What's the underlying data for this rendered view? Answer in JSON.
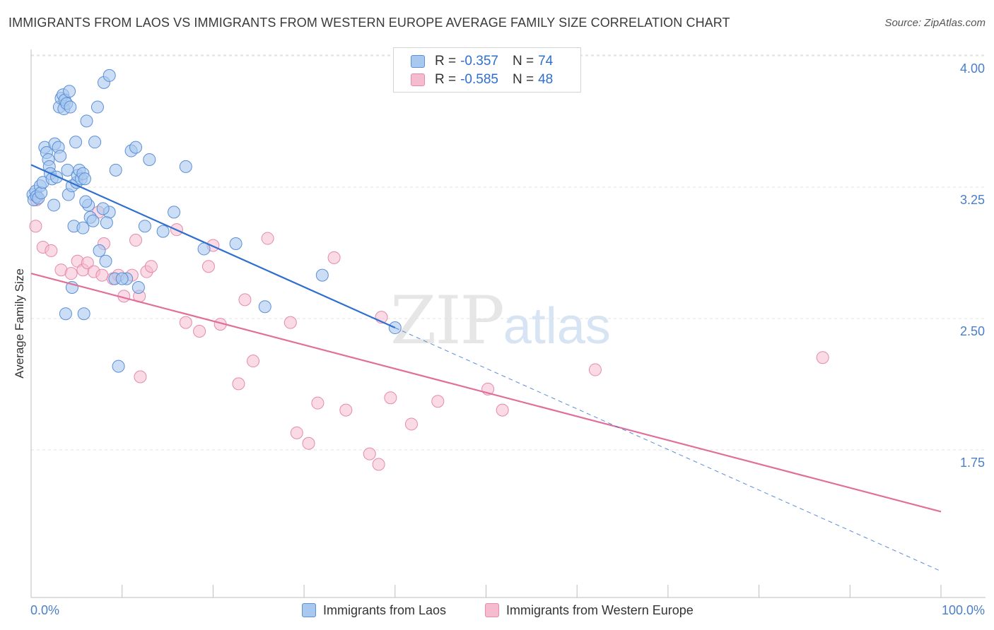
{
  "title": "IMMIGRANTS FROM LAOS VS IMMIGRANTS FROM WESTERN EUROPE AVERAGE FAMILY SIZE CORRELATION CHART",
  "source": "Source: ZipAtlas.com",
  "watermark": {
    "zip": "ZIP",
    "atlas": "atlas"
  },
  "legend": {
    "r_label": "R =",
    "n_label": "N =",
    "rows": [
      {
        "r": "-0.357",
        "n": "74"
      },
      {
        "r": "-0.585",
        "n": "48"
      }
    ]
  },
  "bottom_legend": [
    {
      "label": "Immigrants from Laos"
    },
    {
      "label": "Immigrants from Western Europe"
    }
  ],
  "colors": {
    "blue_fill": "#a9c8ef",
    "blue_stroke": "#5b8fd6",
    "blue_line": "#2f6fd0",
    "pink_fill": "#f5bcd0",
    "pink_stroke": "#e58aab",
    "pink_line": "#e0709a",
    "grid": "#e2e2e2",
    "tick_text": "#4a7fc8"
  },
  "chart_data": {
    "type": "scatter",
    "title": "IMMIGRANTS FROM LAOS VS IMMIGRANTS FROM WESTERN EUROPE AVERAGE FAMILY SIZE CORRELATION CHART",
    "xlabel": "",
    "ylabel": "Average Family Size",
    "xlim": [
      0,
      100
    ],
    "ylim": [
      1.0,
      4.13
    ],
    "x_tick_labels": [
      {
        "value": 0,
        "label": "0.0%"
      },
      {
        "value": 100,
        "label": "100.0%"
      }
    ],
    "y_ticks": [
      {
        "value": 4.0,
        "label": "4.00"
      },
      {
        "value": 3.25,
        "label": "3.25"
      },
      {
        "value": 2.5,
        "label": "2.50"
      },
      {
        "value": 1.75,
        "label": "1.75"
      }
    ],
    "x_minor_ticks": [
      0,
      10,
      20,
      30,
      40,
      50,
      60,
      70,
      80,
      90,
      100
    ],
    "grid": true,
    "series": [
      {
        "name": "Immigrants from Laos",
        "r": -0.357,
        "n": 74,
        "trend": {
          "x1": 0,
          "y1": 3.45,
          "x2": 40,
          "y2": 2.52,
          "dash_x2": 100,
          "dash_y2": 1.13
        },
        "points": [
          [
            0.2,
            3.28
          ],
          [
            0.3,
            3.25
          ],
          [
            0.5,
            3.3
          ],
          [
            0.6,
            3.27
          ],
          [
            0.8,
            3.26
          ],
          [
            1.0,
            3.33
          ],
          [
            1.1,
            3.29
          ],
          [
            1.3,
            3.35
          ],
          [
            1.5,
            3.55
          ],
          [
            1.7,
            3.52
          ],
          [
            1.9,
            3.48
          ],
          [
            2.0,
            3.44
          ],
          [
            2.1,
            3.4
          ],
          [
            2.3,
            3.37
          ],
          [
            2.5,
            3.22
          ],
          [
            2.6,
            3.57
          ],
          [
            2.8,
            3.38
          ],
          [
            3.0,
            3.55
          ],
          [
            3.1,
            3.78
          ],
          [
            3.2,
            3.5
          ],
          [
            3.3,
            3.83
          ],
          [
            3.5,
            3.85
          ],
          [
            3.6,
            3.77
          ],
          [
            3.7,
            3.82
          ],
          [
            3.9,
            3.8
          ],
          [
            4.0,
            3.42
          ],
          [
            4.1,
            3.28
          ],
          [
            4.2,
            3.87
          ],
          [
            4.3,
            3.78
          ],
          [
            4.5,
            3.33
          ],
          [
            4.7,
            3.1
          ],
          [
            4.9,
            3.58
          ],
          [
            5.0,
            3.35
          ],
          [
            5.1,
            3.39
          ],
          [
            5.3,
            3.42
          ],
          [
            5.5,
            3.37
          ],
          [
            5.7,
            3.4
          ],
          [
            5.9,
            3.37
          ],
          [
            6.1,
            3.7
          ],
          [
            6.3,
            3.22
          ],
          [
            6.5,
            3.15
          ],
          [
            6.8,
            3.13
          ],
          [
            7.0,
            3.58
          ],
          [
            7.3,
            3.78
          ],
          [
            8.0,
            3.92
          ],
          [
            8.6,
            3.96
          ],
          [
            9.3,
            3.42
          ],
          [
            10.5,
            2.8
          ],
          [
            11.0,
            3.53
          ],
          [
            11.5,
            3.55
          ],
          [
            13.0,
            3.48
          ],
          [
            14.5,
            3.07
          ],
          [
            15.7,
            3.18
          ],
          [
            17.0,
            3.44
          ],
          [
            19.0,
            2.97
          ],
          [
            22.5,
            3.0
          ],
          [
            25.7,
            2.64
          ],
          [
            32.0,
            2.82
          ],
          [
            3.8,
            2.6
          ],
          [
            4.5,
            2.75
          ],
          [
            5.8,
            2.6
          ],
          [
            7.5,
            2.96
          ],
          [
            8.2,
            2.9
          ],
          [
            9.2,
            2.8
          ],
          [
            8.6,
            3.18
          ],
          [
            10.0,
            2.8
          ],
          [
            11.8,
            2.75
          ],
          [
            9.6,
            2.3
          ],
          [
            5.7,
            3.09
          ],
          [
            12.5,
            3.1
          ],
          [
            8.3,
            3.12
          ],
          [
            6.0,
            3.24
          ],
          [
            7.9,
            3.2
          ],
          [
            40.0,
            2.52
          ]
        ]
      },
      {
        "name": "Immigrants from Western Europe",
        "r": -0.585,
        "n": 48,
        "trend": {
          "x1": 0,
          "y1": 2.83,
          "x2": 100,
          "y2": 1.47
        },
        "points": [
          [
            0.5,
            3.1
          ],
          [
            0.6,
            3.25
          ],
          [
            1.3,
            2.98
          ],
          [
            2.2,
            2.96
          ],
          [
            3.3,
            2.85
          ],
          [
            4.4,
            2.83
          ],
          [
            5.1,
            2.9
          ],
          [
            5.7,
            2.85
          ],
          [
            6.2,
            2.89
          ],
          [
            6.9,
            2.84
          ],
          [
            7.4,
            3.18
          ],
          [
            7.8,
            2.82
          ],
          [
            8.0,
            3.0
          ],
          [
            9.0,
            2.8
          ],
          [
            9.6,
            2.82
          ],
          [
            10.2,
            2.7
          ],
          [
            11.1,
            2.82
          ],
          [
            11.5,
            3.02
          ],
          [
            11.9,
            2.7
          ],
          [
            12.7,
            2.84
          ],
          [
            13.2,
            2.87
          ],
          [
            16.0,
            3.08
          ],
          [
            17.0,
            2.55
          ],
          [
            18.5,
            2.5
          ],
          [
            19.5,
            2.87
          ],
          [
            20.0,
            2.99
          ],
          [
            20.8,
            2.54
          ],
          [
            22.8,
            2.2
          ],
          [
            23.5,
            2.68
          ],
          [
            24.4,
            2.33
          ],
          [
            26.0,
            3.03
          ],
          [
            28.5,
            2.55
          ],
          [
            29.2,
            1.92
          ],
          [
            30.5,
            1.86
          ],
          [
            31.5,
            2.09
          ],
          [
            33.3,
            2.92
          ],
          [
            34.6,
            2.05
          ],
          [
            37.2,
            1.8
          ],
          [
            38.2,
            1.74
          ],
          [
            38.5,
            2.58
          ],
          [
            39.5,
            2.12
          ],
          [
            41.8,
            1.97
          ],
          [
            44.7,
            2.1
          ],
          [
            50.2,
            2.17
          ],
          [
            51.8,
            2.05
          ],
          [
            62.0,
            2.28
          ],
          [
            87.0,
            2.35
          ],
          [
            12.0,
            2.24
          ]
        ]
      }
    ]
  }
}
